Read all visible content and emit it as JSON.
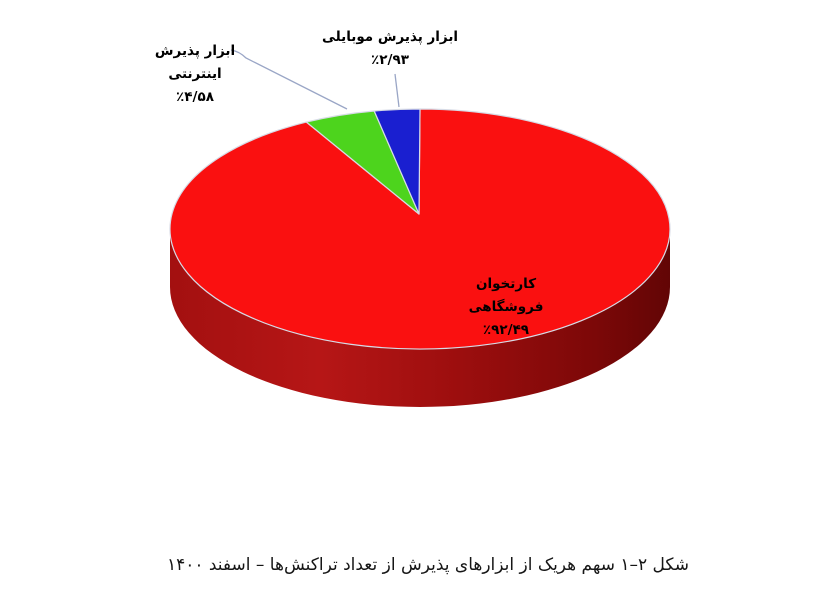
{
  "caption": "شکل ۲–۱ سهم هریک از ابزارهای پذیرش از تعداد تراکنش‌ها – اسفند ۱۴۰۰",
  "chart_data": {
    "type": "pie",
    "style": "3d",
    "direction": "clockwise",
    "start_angle_deg": 0,
    "title": "شکل ۲–۱ سهم هریک از ابزارهای پذیرش از تعداد تراکنش‌ها – اسفند ۱۴۰۰",
    "legend_position": "none",
    "labels_on_chart": true,
    "slices": [
      {
        "label": "کارتخوان فروشگاهی",
        "value": 92.49,
        "value_label": "٪۹۲/۴۹",
        "color": "#fa1010"
      },
      {
        "label": "ابزار پذیرش اینترنتی",
        "value": 4.58,
        "value_label": "٪۴/۵۸",
        "color": "#4dd41d"
      },
      {
        "label": "ابزار پذیرش موبایلی",
        "value": 2.93,
        "value_label": "٪۲/۹۳",
        "color": "#1a1fd0"
      }
    ]
  },
  "labels": {
    "pos": {
      "line1": "کارتخوان",
      "line2": "فروشگاهی"
    },
    "internet": {
      "line1": "ابزار پذیرش",
      "line2": "اینترنتی"
    },
    "mobile": {
      "line1": "ابزار پذیرش موبایلی"
    }
  },
  "colors": {
    "background": "#ffffff",
    "slice_border": "#d7dbe6",
    "leader_line": "#9aa6c6",
    "label_text": "#000000",
    "side_shadow_dark": "#620505",
    "side_shadow_light": "#b61616"
  }
}
